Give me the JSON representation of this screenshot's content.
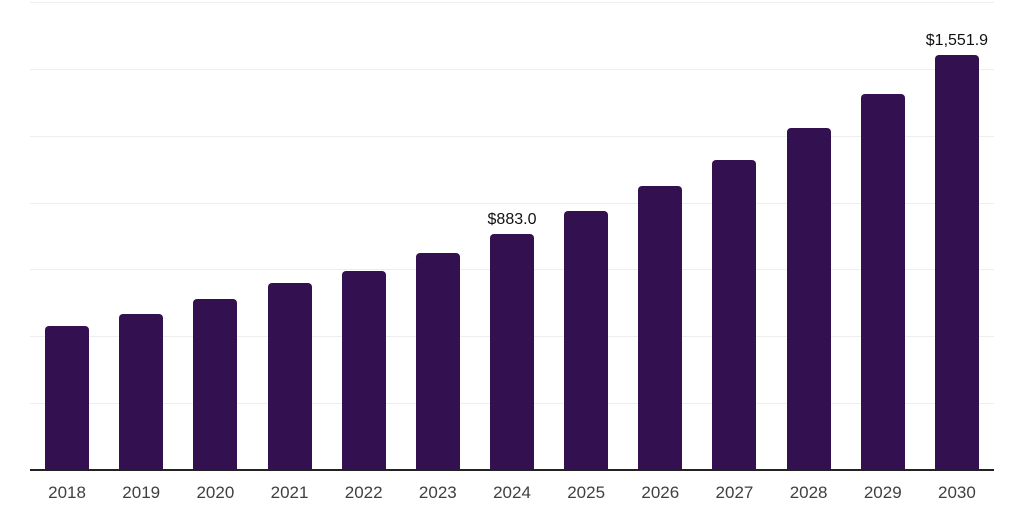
{
  "chart_data": {
    "type": "bar",
    "title": "",
    "xlabel": "",
    "ylabel": "",
    "categories": [
      "2018",
      "2019",
      "2020",
      "2021",
      "2022",
      "2023",
      "2024",
      "2025",
      "2026",
      "2027",
      "2028",
      "2029",
      "2030"
    ],
    "values": [
      539.6,
      582.4,
      640.2,
      700.1,
      744.9,
      812.0,
      883.0,
      969.4,
      1062.3,
      1159.4,
      1279.9,
      1405.9,
      1551.9
    ],
    "data_labels": {
      "2024": "$883.0",
      "2030": "$1,551.9"
    },
    "ylim": [
      0,
      1750
    ],
    "gridline_step": 250,
    "y_tick_labels_visible": false,
    "grid": "horizontal",
    "legend": "none",
    "colors": {
      "bar": "#331050",
      "gridline": "#eeeeee",
      "axis_line": "#222222",
      "tick_label": "#404040",
      "value_label": "#111111",
      "background": "#ffffff"
    }
  }
}
